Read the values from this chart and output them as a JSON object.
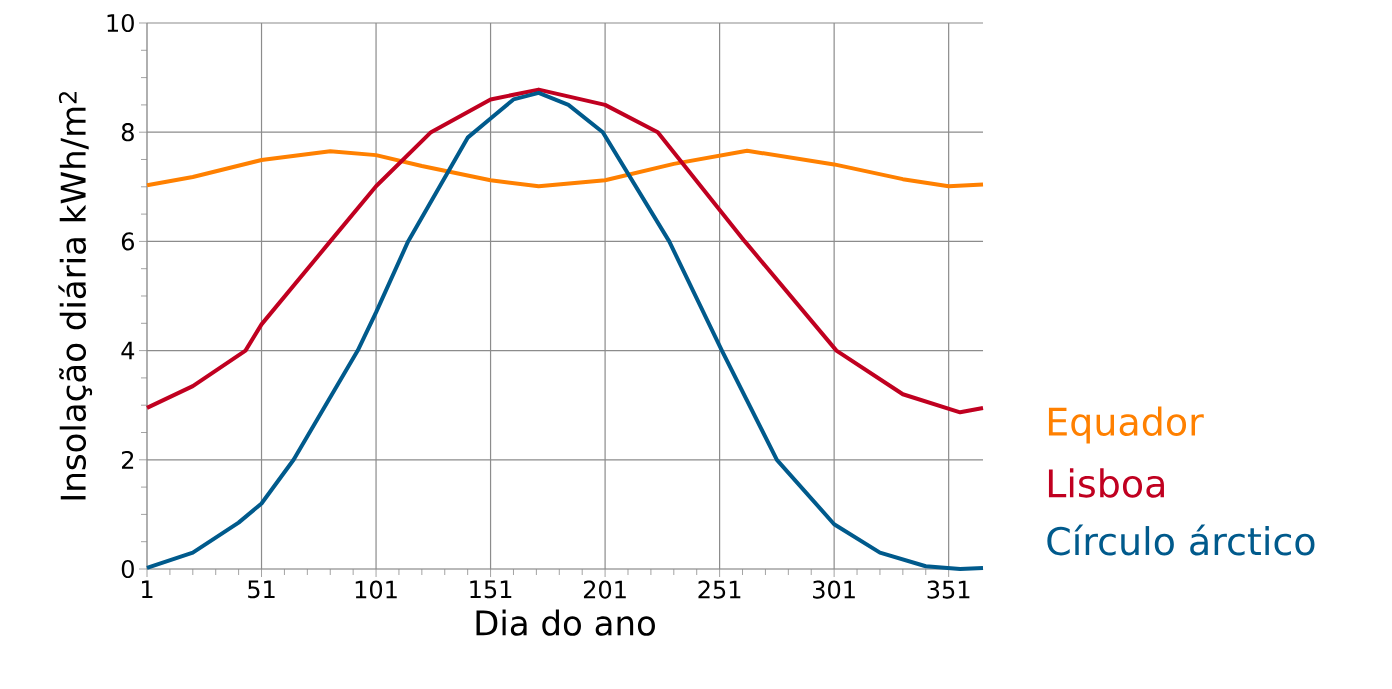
{
  "chart_data": {
    "type": "line",
    "xlabel": "Dia do ano",
    "ylabel": "Insolação diária kWh/m$^{2}$",
    "xlim": [
      1,
      366
    ],
    "xticks": [
      1,
      51,
      101,
      151,
      201,
      251,
      301,
      351
    ],
    "ylim": [
      0,
      10
    ],
    "yticks": [
      0,
      2,
      4,
      6,
      8,
      10
    ],
    "grid": true,
    "legend": "right",
    "marker": "none",
    "line_style": "solid",
    "series": [
      {
        "name": "Equador",
        "color": "#ff8000",
        "x": [
          1,
          21,
          51,
          81,
          101,
          121,
          151,
          172,
          201,
          231,
          263,
          301,
          331,
          351,
          366
        ],
        "values": [
          7.03,
          7.18,
          7.49,
          7.65,
          7.58,
          7.38,
          7.12,
          7.01,
          7.12,
          7.42,
          7.66,
          7.41,
          7.14,
          7.01,
          7.04
        ]
      },
      {
        "name": "Lisboa",
        "color": "#c00020",
        "x": [
          1,
          21,
          44,
          51,
          81,
          101,
          125,
          151,
          172,
          201,
          224,
          262,
          302,
          331,
          356,
          366
        ],
        "values": [
          2.95,
          3.35,
          4.0,
          4.48,
          6.0,
          7.01,
          8.0,
          8.6,
          8.78,
          8.5,
          8.0,
          6.0,
          4.0,
          3.2,
          2.87,
          2.95
        ]
      },
      {
        "name": "Círculo árctico",
        "color": "#005a8c",
        "x": [
          1,
          21,
          41,
          51,
          65,
          93,
          101,
          115,
          141,
          151,
          161,
          172,
          185,
          200,
          229,
          252,
          276,
          301,
          321,
          341,
          356,
          366
        ],
        "values": [
          0.02,
          0.3,
          0.85,
          1.2,
          2.0,
          4.0,
          4.7,
          6.0,
          7.9,
          8.25,
          8.6,
          8.72,
          8.5,
          8.0,
          6.0,
          4.0,
          2.0,
          0.82,
          0.3,
          0.05,
          0.0,
          0.02
        ]
      }
    ]
  }
}
